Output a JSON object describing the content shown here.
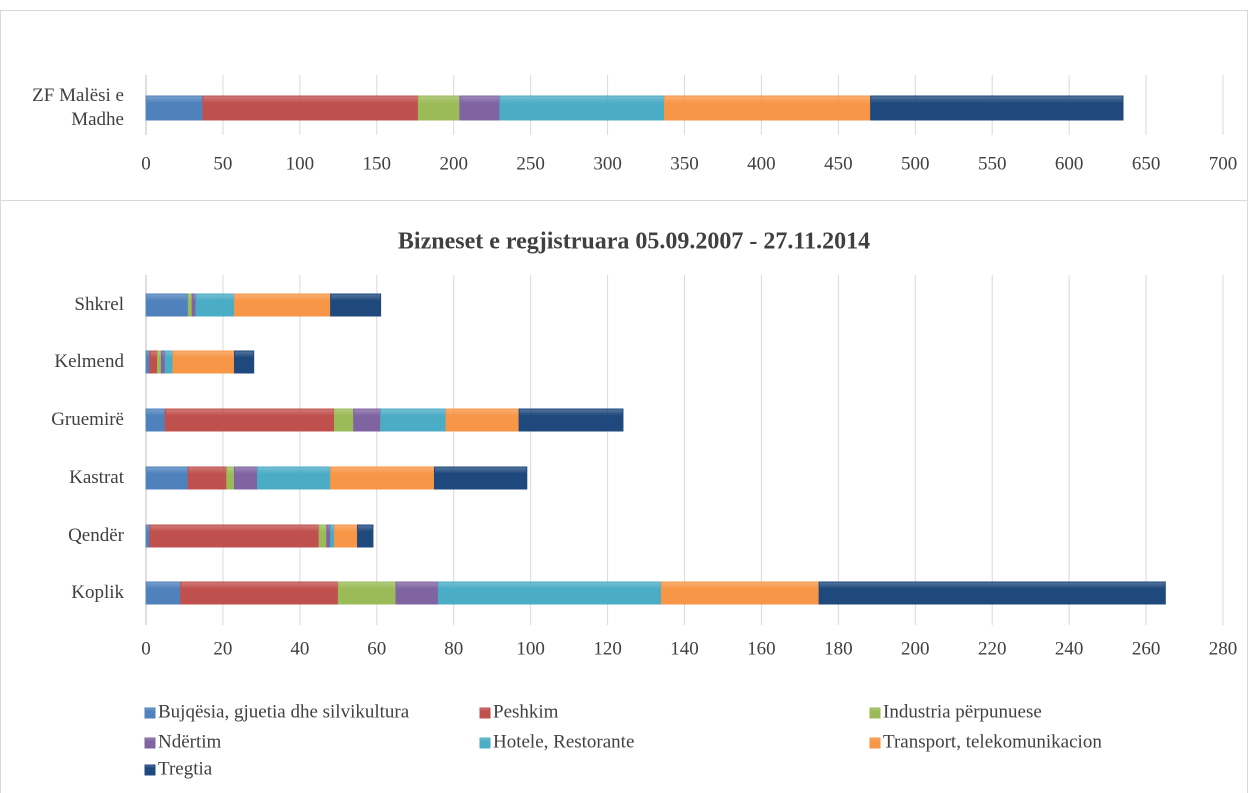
{
  "chart_data": [
    {
      "type": "bar",
      "orientation": "horizontal",
      "stacked": true,
      "categories": [
        "ZF Malësi e Madhe"
      ],
      "series": [
        {
          "color": "#4f81bd",
          "values": [
            37
          ]
        },
        {
          "color": "#c0504d",
          "values": [
            140
          ]
        },
        {
          "color": "#9bbb59",
          "values": [
            27
          ]
        },
        {
          "color": "#8064a2",
          "values": [
            26
          ]
        },
        {
          "color": "#4bacc6",
          "values": [
            107
          ]
        },
        {
          "color": "#f79646",
          "values": [
            134
          ]
        },
        {
          "color": "#1f497d",
          "values": [
            164
          ]
        }
      ],
      "xlim": [
        0,
        700
      ],
      "xticks": [
        0,
        50,
        100,
        150,
        200,
        250,
        300,
        350,
        400,
        450,
        500,
        550,
        600,
        650,
        700
      ],
      "grid": true
    },
    {
      "type": "bar",
      "orientation": "horizontal",
      "stacked": true,
      "title": "Bizneset e regjistruara 05.09.2007 - 27.11.2014",
      "categories": [
        "Shkrel",
        "Kelmend",
        "Gruemirë",
        "Kastrat",
        "Qendër",
        "Koplik"
      ],
      "series": [
        {
          "name": "Bujqësia, gjuetia dhe silvikultura",
          "color": "#4f81bd",
          "values": [
            11,
            1,
            5,
            11,
            1,
            9
          ]
        },
        {
          "name": "Peshkim",
          "color": "#c0504d",
          "values": [
            0,
            2,
            44,
            10,
            44,
            41
          ]
        },
        {
          "name": "Industria përpunuese",
          "color": "#9bbb59",
          "values": [
            1,
            1,
            5,
            2,
            2,
            15
          ]
        },
        {
          "name": "Ndërtim",
          "color": "#8064a2",
          "values": [
            1,
            1,
            7,
            6,
            1,
            11
          ]
        },
        {
          "name": "Hotele, Restorante",
          "color": "#4bacc6",
          "values": [
            10,
            2,
            17,
            19,
            1,
            58
          ]
        },
        {
          "name": "Transport, telekomunikacion",
          "color": "#f79646",
          "values": [
            25,
            16,
            19,
            27,
            6,
            41
          ]
        },
        {
          "name": "Tregtia",
          "color": "#1f497d",
          "values": [
            13,
            5,
            27,
            24,
            4,
            90
          ]
        }
      ],
      "xlim": [
        0,
        280
      ],
      "xticks": [
        0,
        20,
        40,
        60,
        80,
        100,
        120,
        140,
        160,
        180,
        200,
        220,
        240,
        260,
        280
      ],
      "grid": true,
      "legend": "bottom"
    }
  ]
}
